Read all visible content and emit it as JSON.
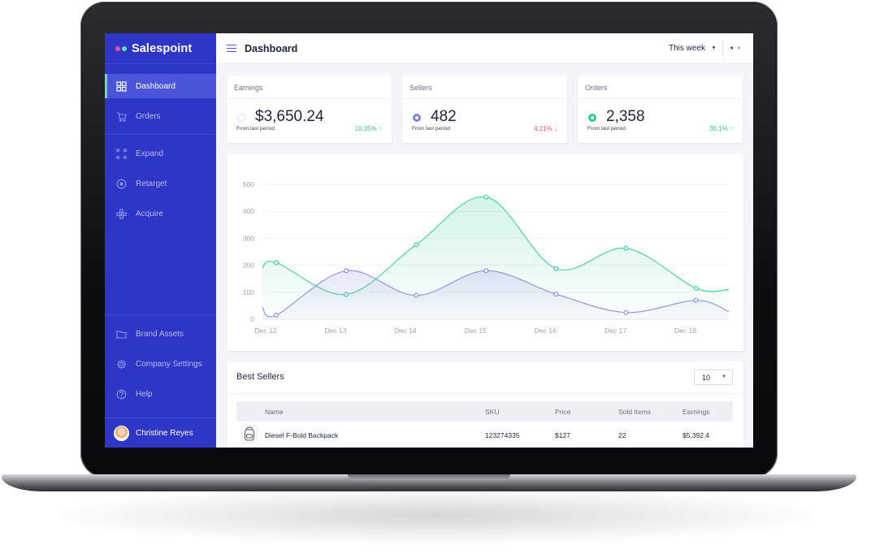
{
  "app": {
    "name": "Salespoint",
    "logo_colors": [
      "#f04da0",
      "#5ee0b1"
    ]
  },
  "header": {
    "title": "Dashboard",
    "period": "This week"
  },
  "sidebar": {
    "items": [
      {
        "label": "Dashboard",
        "icon": "grid-icon",
        "active": true
      },
      {
        "label": "Orders",
        "icon": "cart-icon"
      },
      {
        "label": "Expand",
        "icon": "expand-icon"
      },
      {
        "label": "Retarget",
        "icon": "target-icon"
      },
      {
        "label": "Acquire",
        "icon": "network-icon"
      }
    ],
    "bottom_items": [
      {
        "label": "Brand Assets",
        "icon": "folder-icon"
      },
      {
        "label": "Company Settings",
        "icon": "gear-icon"
      },
      {
        "label": "Help",
        "icon": "help-icon"
      }
    ],
    "user": {
      "name": "Christine Reyes"
    }
  },
  "stats": [
    {
      "title": "Earnings",
      "value": "$3,650.24",
      "sub": "From last period",
      "change": "10.35% ↑",
      "change_color": "#2cc990",
      "marker_color": "#d8dbe6"
    },
    {
      "title": "Sellers",
      "value": "482",
      "sub": "From last period",
      "change": "4.21% ↓",
      "change_color": "#f0506e",
      "marker_color": "#7b83e8"
    },
    {
      "title": "Orders",
      "value": "2,358",
      "sub": "From last period",
      "change": "30.1% ↑",
      "change_color": "#2cc990",
      "marker_color": "#2cc990"
    }
  ],
  "chart_data": {
    "type": "area",
    "categories": [
      "Dec 12",
      "Dec 13",
      "Dec 14",
      "Dec 15",
      "Dec 16",
      "Dec 17",
      "Dec 18"
    ],
    "ylim": [
      0,
      500
    ],
    "yticks": [
      0,
      100,
      200,
      300,
      400,
      500
    ],
    "grid": true,
    "series": [
      {
        "color": "#3ccf98",
        "values": [
          210,
          92,
          276,
          453,
          188,
          263,
          115
        ]
      },
      {
        "color": "#8a90e4",
        "values": [
          15,
          180,
          88,
          180,
          93,
          25,
          70
        ]
      }
    ],
    "x_start": 190,
    "x_end": 110,
    "series2_start": 45,
    "series2_end": 28
  },
  "best_sellers": {
    "title": "Best Sellers",
    "page_size": "10",
    "columns": [
      "Name",
      "SKU",
      "Price",
      "Sold Items",
      "Earnings"
    ],
    "rows": [
      {
        "name": "Diesel F-Bold Backpack",
        "sku": "123274335",
        "price": "$127",
        "sold": "22",
        "earnings": "$5,392.4"
      }
    ]
  }
}
